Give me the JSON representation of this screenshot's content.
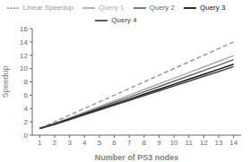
{
  "chart_data": {
    "type": "line",
    "xlabel": "Number of PS3 nodes",
    "ylabel": "Speedup",
    "x": [
      1,
      2,
      3,
      4,
      5,
      6,
      7,
      8,
      9,
      10,
      11,
      12,
      13,
      14
    ],
    "series": [
      {
        "name": "Linear Speedup",
        "color": "#999999",
        "line_style": "dashed",
        "values": [
          1,
          2,
          3,
          4,
          5,
          6,
          7,
          8,
          9,
          10,
          11,
          12,
          13,
          14
        ]
      },
      {
        "name": "Query 1",
        "color": "#aaaaaa",
        "line_style": "solid",
        "values": [
          1,
          1.78,
          2.6,
          3.45,
          4.3,
          5.15,
          6.0,
          6.85,
          7.7,
          8.55,
          9.4,
          10.25,
          11.1,
          11.95
        ]
      },
      {
        "name": "Query 2",
        "color": "#666666",
        "line_style": "solid",
        "values": [
          1,
          1.72,
          2.5,
          3.3,
          4.1,
          4.9,
          5.7,
          6.5,
          7.3,
          8.1,
          8.9,
          9.7,
          10.5,
          11.35
        ]
      },
      {
        "name": "Query 3",
        "color": "#111111",
        "line_style": "solid",
        "values": [
          1,
          1.65,
          2.4,
          3.15,
          3.9,
          4.65,
          5.4,
          6.15,
          6.9,
          7.65,
          8.4,
          9.15,
          9.9,
          10.65
        ]
      },
      {
        "name": "Query 4",
        "color": "#444444",
        "line_style": "solid",
        "values": [
          1,
          1.6,
          2.3,
          3.05,
          3.75,
          4.5,
          5.2,
          5.95,
          6.65,
          7.4,
          8.1,
          8.85,
          9.55,
          10.3
        ]
      }
    ],
    "xlim": [
      0.5,
      14.5
    ],
    "ylim": [
      0,
      16
    ],
    "xticks": [
      1,
      2,
      3,
      4,
      5,
      6,
      7,
      8,
      9,
      10,
      11,
      12,
      13,
      14
    ],
    "yticks": [
      0,
      2,
      4,
      6,
      8,
      10,
      12,
      14,
      16
    ],
    "grid": false,
    "legend": "top"
  }
}
